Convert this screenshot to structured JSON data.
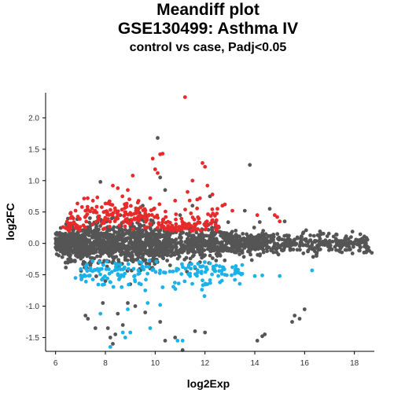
{
  "chart_data": {
    "type": "scatter",
    "title": "Meandiff plot",
    "subtitle_lines": [
      "GSE130499: Asthma IV",
      "control vs case, Padj<0.05"
    ],
    "xlabel": "log2Exp",
    "ylabel": "log2FC",
    "xlim": [
      5.6,
      18.8
    ],
    "ylim": [
      -1.72,
      2.4
    ],
    "x_ticks": [
      6,
      8,
      10,
      12,
      14,
      16,
      18
    ],
    "y_ticks": [
      -1.5,
      -1.0,
      -0.5,
      0.0,
      0.5,
      1.0,
      1.5,
      2.0
    ],
    "x_tick_labels": [
      "6",
      "8",
      "10",
      "12",
      "14",
      "16",
      "18"
    ],
    "y_tick_labels": [
      "-1.5",
      "-1.0",
      "-0.5",
      "0.0",
      "0.5",
      "1.0",
      "1.5",
      "2.0"
    ],
    "grid": false,
    "series": [
      {
        "color": "#555555",
        "approx_count": 2000,
        "points": [
          [
            7.8,
            0.98
          ],
          [
            10.1,
            1.68
          ],
          [
            8.6,
            0.45
          ],
          [
            10.4,
            0.85
          ],
          [
            10.2,
            1.05
          ],
          [
            13.8,
            1.25
          ],
          [
            11.5,
            0.6
          ],
          [
            12.2,
            0.75
          ],
          [
            13.6,
            0.52
          ],
          [
            14.6,
            0.55
          ],
          [
            15.2,
            0.35
          ],
          [
            14.2,
            0.34
          ],
          [
            11.0,
            0.45
          ],
          [
            9.5,
            0.6
          ],
          [
            7.3,
            -1.2
          ],
          [
            7.2,
            -1.15
          ],
          [
            7.6,
            -1.35
          ],
          [
            8.1,
            -1.35
          ],
          [
            8.2,
            -1.5
          ],
          [
            8.4,
            -1.45
          ],
          [
            8.3,
            -1.6
          ],
          [
            8.7,
            -1.3
          ],
          [
            8.5,
            -1.12
          ],
          [
            9.2,
            -1.0
          ],
          [
            9.6,
            -1.1
          ],
          [
            10.2,
            -1.25
          ],
          [
            10.4,
            -1.55
          ],
          [
            10.8,
            -1.5
          ],
          [
            11.1,
            -1.7
          ],
          [
            11.6,
            -1.4
          ],
          [
            12.0,
            -1.42
          ],
          [
            14.1,
            -1.55
          ],
          [
            14.3,
            -1.48
          ],
          [
            14.4,
            -1.45
          ],
          [
            15.5,
            -1.25
          ],
          [
            15.6,
            -1.15
          ],
          [
            15.8,
            -1.2
          ],
          [
            16.0,
            -1.05
          ],
          [
            8.0,
            -0.6
          ],
          [
            9.0,
            -0.65
          ],
          [
            9.8,
            -0.4
          ],
          [
            10.6,
            -0.35
          ],
          [
            11.8,
            -0.3
          ],
          [
            12.5,
            -0.2
          ],
          [
            13.5,
            -0.15
          ],
          [
            7.9,
            -0.95
          ],
          [
            8.9,
            -0.95
          ],
          [
            18.6,
            -0.12
          ],
          [
            18.7,
            -0.15
          ],
          [
            18.5,
            -0.08
          ],
          [
            17.8,
            -0.1
          ],
          [
            18.0,
            0.02
          ]
        ]
      },
      {
        "color": "#e82a2a",
        "points": [
          [
            11.2,
            2.33
          ],
          [
            9.9,
            1.35
          ],
          [
            10.2,
            1.42
          ],
          [
            10.3,
            1.43
          ],
          [
            10.0,
            1.18
          ],
          [
            10.1,
            1.12
          ],
          [
            11.9,
            1.28
          ],
          [
            12.0,
            1.22
          ],
          [
            11.5,
            1.0
          ],
          [
            12.1,
            0.92
          ],
          [
            9.1,
            1.08
          ],
          [
            8.3,
            0.92
          ],
          [
            8.9,
            0.85
          ],
          [
            8.5,
            0.88
          ],
          [
            11.3,
            0.82
          ],
          [
            11.8,
            0.72
          ],
          [
            12.3,
            0.78
          ],
          [
            10.8,
            0.68
          ],
          [
            9.8,
            0.72
          ],
          [
            9.3,
            0.65
          ],
          [
            8.2,
            0.62
          ],
          [
            7.5,
            0.68
          ],
          [
            7.2,
            0.52
          ],
          [
            12.7,
            0.6
          ],
          [
            12.8,
            0.62
          ],
          [
            13.1,
            0.52
          ],
          [
            14.1,
            0.45
          ],
          [
            14.8,
            0.45
          ],
          [
            14.9,
            0.42
          ],
          [
            15.0,
            0.35
          ],
          [
            6.5,
            0.24
          ],
          [
            6.6,
            0.32
          ],
          [
            6.3,
            0.26
          ],
          [
            12.5,
            0.55
          ]
        ]
      },
      {
        "color": "#1ab2e8",
        "points": [
          [
            8.2,
            -1.65
          ],
          [
            8.8,
            -1.5
          ],
          [
            8.7,
            -1.42
          ],
          [
            9.0,
            -1.42
          ],
          [
            9.8,
            -1.35
          ],
          [
            10.9,
            -1.55
          ],
          [
            11.1,
            -1.55
          ],
          [
            7.8,
            -1.12
          ],
          [
            8.9,
            -1.05
          ],
          [
            9.7,
            -0.95
          ],
          [
            10.2,
            -0.98
          ],
          [
            12.1,
            -0.65
          ],
          [
            12.6,
            -0.62
          ],
          [
            13.2,
            -0.58
          ],
          [
            14.0,
            -0.52
          ],
          [
            14.3,
            -0.51
          ],
          [
            15.0,
            -0.52
          ],
          [
            16.3,
            -0.43
          ],
          [
            12.8,
            -0.5
          ],
          [
            9.6,
            -0.75
          ],
          [
            10.3,
            -0.7
          ],
          [
            6.8,
            -0.55
          ],
          [
            7.2,
            -0.52
          ],
          [
            13.1,
            -0.38
          ]
        ]
      }
    ]
  }
}
